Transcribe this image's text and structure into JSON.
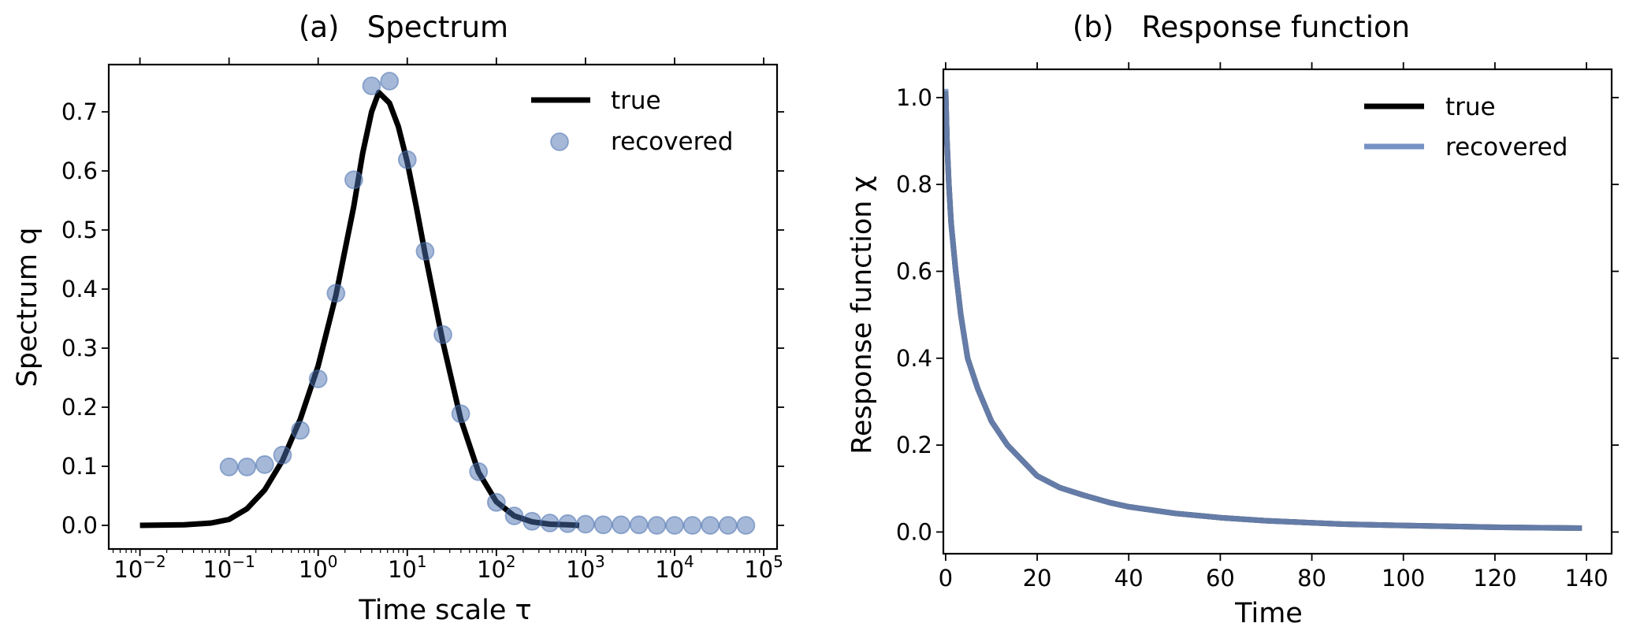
{
  "chart_data": [
    {
      "id": "a",
      "type": "scatter",
      "title": "(a)   Spectrum",
      "xlabel": "Time scale τ",
      "ylabel": "Spectrum q",
      "xscale": "log",
      "xlim_log10": [
        -2.35,
        5.15
      ],
      "ylim": [
        -0.04,
        0.78
      ],
      "xticks": [
        {
          "base": "10",
          "exp": "−2",
          "log10": -2
        },
        {
          "base": "10",
          "exp": "−1",
          "log10": -1
        },
        {
          "base": "10",
          "exp": "0",
          "log10": 0
        },
        {
          "base": "10",
          "exp": "1",
          "log10": 1
        },
        {
          "base": "10",
          "exp": "2",
          "log10": 2
        },
        {
          "base": "10",
          "exp": "3",
          "log10": 3
        },
        {
          "base": "10",
          "exp": "4",
          "log10": 4
        },
        {
          "base": "10",
          "exp": "5",
          "log10": 5
        }
      ],
      "yticks": [
        {
          "label": "0.0",
          "value": 0.0
        },
        {
          "label": "0.1",
          "value": 0.1
        },
        {
          "label": "0.2",
          "value": 0.2
        },
        {
          "label": "0.3",
          "value": 0.3
        },
        {
          "label": "0.4",
          "value": 0.4
        },
        {
          "label": "0.5",
          "value": 0.5
        },
        {
          "label": "0.6",
          "value": 0.6
        },
        {
          "label": "0.7",
          "value": 0.7
        }
      ],
      "legend": {
        "placement": "top-right",
        "entries": [
          {
            "label": "true",
            "kind": "line",
            "color": "#000000"
          },
          {
            "label": "recovered",
            "kind": "marker",
            "color": "#4c72b0"
          }
        ]
      },
      "series": [
        {
          "name": "true",
          "kind": "line",
          "color": "#000000",
          "x_log10": [
            -2,
            -1.5,
            -1.2,
            -1,
            -0.8,
            -0.6,
            -0.4,
            -0.2,
            0,
            0.2,
            0.4,
            0.5,
            0.6,
            0.68,
            0.8,
            0.9,
            1.0,
            1.1,
            1.2,
            1.4,
            1.6,
            1.8,
            2.0,
            2.2,
            2.4,
            2.6,
            2.8,
            2.93
          ],
          "y": [
            0,
            0.001,
            0.004,
            0.01,
            0.028,
            0.06,
            0.11,
            0.18,
            0.27,
            0.39,
            0.54,
            0.63,
            0.7,
            0.733,
            0.715,
            0.675,
            0.615,
            0.54,
            0.46,
            0.31,
            0.18,
            0.09,
            0.04,
            0.016,
            0.006,
            0.002,
            0.001,
            0.0
          ]
        },
        {
          "name": "recovered",
          "kind": "marker",
          "color": "#4c72b0",
          "x_log10": [
            -1.0,
            -0.8,
            -0.6,
            -0.4,
            -0.2,
            0.0,
            0.2,
            0.4,
            0.6,
            0.8,
            1.0,
            1.2,
            1.4,
            1.6,
            1.8,
            2.0,
            2.2,
            2.4,
            2.6,
            2.8,
            3.0,
            3.2,
            3.4,
            3.6,
            3.8,
            4.0,
            4.2,
            4.4,
            4.6,
            4.8
          ],
          "y": [
            0.099,
            0.099,
            0.103,
            0.119,
            0.161,
            0.248,
            0.393,
            0.585,
            0.744,
            0.752,
            0.619,
            0.464,
            0.323,
            0.189,
            0.091,
            0.039,
            0.016,
            0.007,
            0.004,
            0.003,
            0.002,
            0.001,
            0.001,
            0.001,
            0.0,
            0.0,
            0.0,
            0.0,
            0.0,
            0.0
          ]
        }
      ]
    },
    {
      "id": "b",
      "type": "line",
      "title": "(b)   Response function",
      "xlabel": "Time",
      "ylabel": "Response function χ",
      "xlim": [
        -0.5,
        145.5
      ],
      "ylim": [
        -0.05,
        1.065
      ],
      "xticks": [
        {
          "label": "0",
          "value": 0
        },
        {
          "label": "20",
          "value": 20
        },
        {
          "label": "40",
          "value": 40
        },
        {
          "label": "60",
          "value": 60
        },
        {
          "label": "80",
          "value": 80
        },
        {
          "label": "100",
          "value": 100
        },
        {
          "label": "120",
          "value": 120
        },
        {
          "label": "140",
          "value": 140
        }
      ],
      "yticks": [
        {
          "label": "0.0",
          "value": 0.0
        },
        {
          "label": "0.2",
          "value": 0.2
        },
        {
          "label": "0.4",
          "value": 0.4
        },
        {
          "label": "0.6",
          "value": 0.6
        },
        {
          "label": "0.8",
          "value": 0.8
        },
        {
          "label": "1.0",
          "value": 1.0
        }
      ],
      "legend": {
        "placement": "top-right",
        "entries": [
          {
            "label": "true",
            "kind": "line",
            "color": "#000000"
          },
          {
            "label": "recovered",
            "kind": "line",
            "color": "#7592c4"
          }
        ]
      },
      "series": [
        {
          "name": "true",
          "color": "#000000",
          "x": [
            0,
            0.3,
            0.7,
            1.2,
            2.2,
            3.3,
            4.8,
            7,
            10,
            13.5,
            20,
            25,
            30,
            35.7,
            40,
            50,
            60,
            70,
            87,
            100,
            120,
            139
          ],
          "y": [
            1.015,
            0.9,
            0.8,
            0.71,
            0.6,
            0.5,
            0.4,
            0.33,
            0.255,
            0.2,
            0.129,
            0.102,
            0.085,
            0.068,
            0.058,
            0.043,
            0.033,
            0.026,
            0.018,
            0.015,
            0.011,
            0.009
          ]
        },
        {
          "name": "recovered",
          "color": "#7592c4",
          "x": [
            0,
            0.3,
            0.7,
            1.2,
            2.2,
            3.3,
            4.8,
            7,
            10,
            13.5,
            20,
            25,
            30,
            35.7,
            40,
            50,
            60,
            70,
            87,
            100,
            120,
            139
          ],
          "y": [
            1.02,
            0.9,
            0.8,
            0.71,
            0.6,
            0.5,
            0.4,
            0.33,
            0.255,
            0.2,
            0.129,
            0.102,
            0.085,
            0.068,
            0.058,
            0.043,
            0.033,
            0.026,
            0.018,
            0.015,
            0.011,
            0.009
          ]
        }
      ]
    }
  ]
}
